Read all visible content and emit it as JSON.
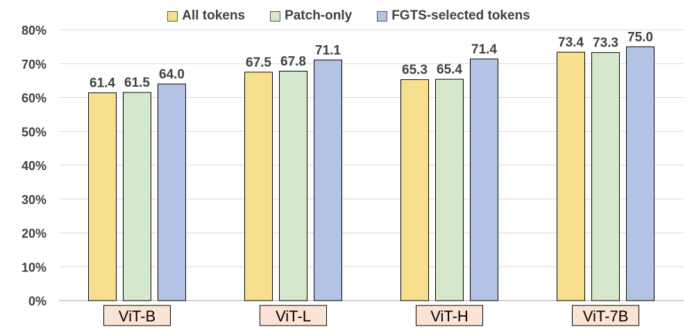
{
  "chart_data": {
    "type": "bar",
    "categories": [
      "ViT-B",
      "ViT-L",
      "ViT-H",
      "ViT-7B"
    ],
    "series": [
      {
        "name": "All tokens",
        "values": [
          61.4,
          67.5,
          65.3,
          73.4
        ],
        "color": "#f8df8e"
      },
      {
        "name": "Patch-only",
        "values": [
          61.5,
          67.8,
          65.4,
          73.3
        ],
        "color": "#d6e8cc"
      },
      {
        "name": "FGTS-selected tokens",
        "values": [
          64.0,
          71.1,
          71.4,
          75.0
        ],
        "color": "#b3c3e5"
      }
    ],
    "yticks": [
      "0%",
      "10%",
      "20%",
      "30%",
      "40%",
      "50%",
      "60%",
      "70%",
      "80%"
    ],
    "ylim": [
      0,
      80
    ],
    "grid": true,
    "legend_position": "top",
    "category_label_bg": "#fbe3d6"
  }
}
